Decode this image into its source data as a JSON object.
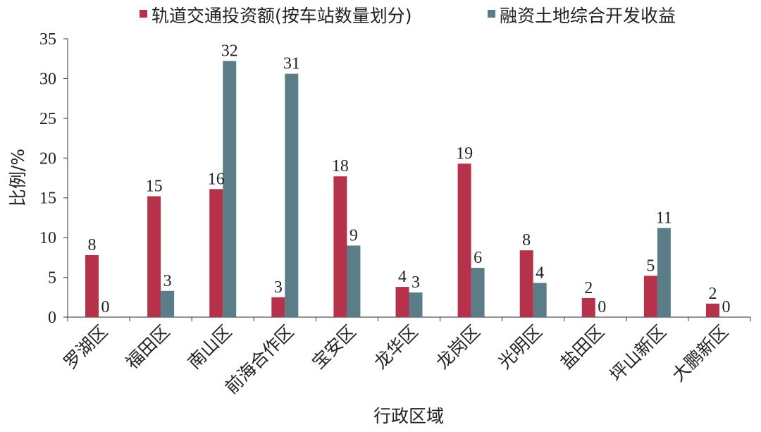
{
  "chart_data": {
    "type": "bar",
    "categories": [
      "罗湖区",
      "福田区",
      "南山区",
      "前海合作区",
      "宝安区",
      "龙华区",
      "龙岗区",
      "光明区",
      "盐田区",
      "坪山新区",
      "大鹏新区"
    ],
    "series": [
      {
        "name": "轨道交通投资额(按车站数量划分)",
        "color": "#b5324a",
        "values": [
          7.8,
          15.2,
          16.1,
          2.5,
          17.7,
          3.8,
          19.3,
          8.4,
          2.4,
          5.2,
          1.7
        ],
        "labels": [
          "8",
          "15",
          "16",
          "3",
          "18",
          "4",
          "19",
          "8",
          "2",
          "5",
          "2"
        ]
      },
      {
        "name": "融资土地综合开发收益",
        "color": "#5b7d87",
        "values": [
          0,
          3.3,
          32.2,
          30.6,
          9.0,
          3.1,
          6.2,
          4.3,
          0,
          11.2,
          0
        ],
        "labels": [
          "0",
          "3",
          "32",
          "31",
          "9",
          "3",
          "6",
          "4",
          "0",
          "11",
          "0"
        ]
      }
    ],
    "xlabel": "行政区域",
    "ylabel": "比例/%",
    "ylim": [
      0,
      35
    ],
    "yticks": [
      0,
      5,
      10,
      15,
      20,
      25,
      30,
      35
    ],
    "grid": false,
    "legend_position": "top-center"
  }
}
